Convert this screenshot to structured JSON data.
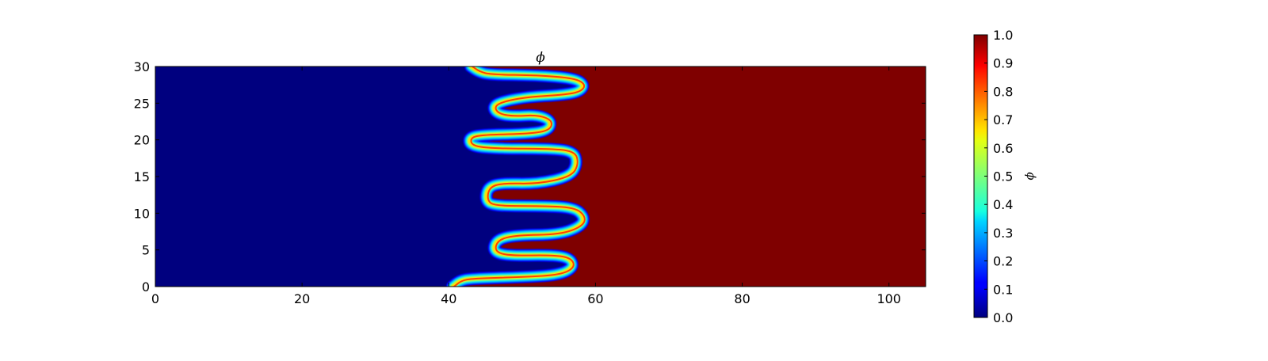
{
  "chart_data": {
    "type": "heatmap",
    "title": "ϕ",
    "xlabel": "",
    "ylabel": "",
    "xlim": [
      0,
      105
    ],
    "ylim": [
      0,
      30
    ],
    "x_ticks": [
      0,
      20,
      40,
      60,
      80,
      100
    ],
    "y_ticks": [
      0,
      5,
      10,
      15,
      20,
      25,
      30
    ],
    "colormap": "jet",
    "colors": {
      "low": "#00007f",
      "high": "#7f0000"
    },
    "grid": false,
    "interface_boundary": {
      "description_values": "x position (data units) of the phase interface at each y level",
      "points": [
        [
          40.5,
          0.0
        ],
        [
          41.5,
          0.8
        ],
        [
          43,
          1.1
        ],
        [
          50,
          1.3
        ],
        [
          55,
          1.6
        ],
        [
          57,
          2.6
        ],
        [
          56.5,
          3.9
        ],
        [
          54,
          4.3
        ],
        [
          48,
          4.2
        ],
        [
          46,
          4.8
        ],
        [
          46.5,
          6.4
        ],
        [
          49,
          7.0
        ],
        [
          55,
          7.1
        ],
        [
          58,
          8.2
        ],
        [
          58.5,
          9.5
        ],
        [
          57,
          10.8
        ],
        [
          52,
          11.0
        ],
        [
          46,
          11.0
        ],
        [
          45,
          11.8
        ],
        [
          45.3,
          13.5
        ],
        [
          47,
          14.1
        ],
        [
          52,
          14.0
        ],
        [
          56.5,
          15.0
        ],
        [
          57.5,
          16.7
        ],
        [
          57,
          18.5
        ],
        [
          53,
          18.8
        ],
        [
          47,
          18.8
        ],
        [
          43,
          19.1
        ],
        [
          42.7,
          20.3
        ],
        [
          44.5,
          20.7
        ],
        [
          50,
          20.8
        ],
        [
          53.5,
          21.2
        ],
        [
          54,
          22.6
        ],
        [
          52,
          23.4
        ],
        [
          48.5,
          23.2
        ],
        [
          46.5,
          23.6
        ],
        [
          46,
          24.6
        ],
        [
          47.5,
          25.3
        ],
        [
          51,
          25.9
        ],
        [
          55,
          26.1
        ],
        [
          57.7,
          26.5
        ],
        [
          58.5,
          27.5
        ],
        [
          57,
          28.4
        ],
        [
          52,
          28.8
        ],
        [
          45.5,
          28.9
        ],
        [
          44,
          29.3
        ],
        [
          43,
          30.0
        ]
      ]
    },
    "colorbar": {
      "label": "ϕ",
      "range": [
        0.0,
        1.0
      ],
      "ticks": [
        "0.0",
        "0.1",
        "0.2",
        "0.3",
        "0.4",
        "0.5",
        "0.6",
        "0.7",
        "0.8",
        "0.9",
        "1.0"
      ]
    }
  }
}
